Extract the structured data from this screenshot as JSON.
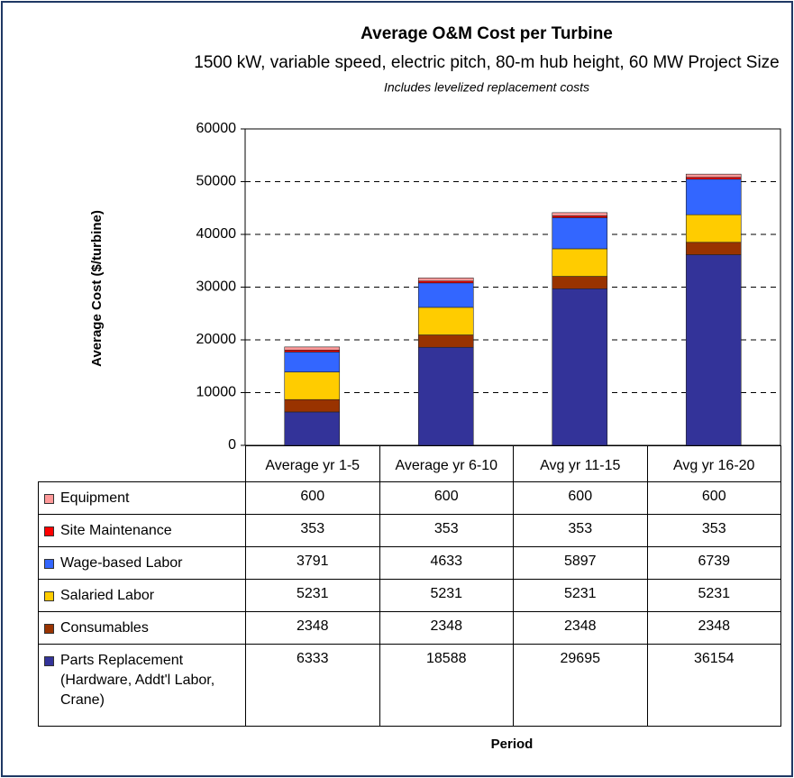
{
  "chart_data": {
    "type": "bar",
    "stacked": true,
    "title": "Average O&M Cost per Turbine",
    "subtitle": "1500 kW, variable speed, electric pitch, 80-m hub height, 60 MW Project Size",
    "note": "Includes levelized replacement costs",
    "y_label": "Average Cost ($/turbine)",
    "x_label": "Period",
    "categories": [
      "Average yr 1-5",
      "Average yr 6-10",
      "Avg yr 11-15",
      "Avg yr 16-20"
    ],
    "series": [
      {
        "name": "Parts Replacement (Hardware, Addt'l Labor, Crane)",
        "color": "#333399",
        "values": [
          6333,
          18588,
          29695,
          36154
        ]
      },
      {
        "name": "Consumables",
        "color": "#993300",
        "values": [
          2348,
          2348,
          2348,
          2348
        ]
      },
      {
        "name": "Salaried Labor",
        "color": "#ffcc00",
        "values": [
          5231,
          5231,
          5231,
          5231
        ]
      },
      {
        "name": "Wage-based Labor",
        "color": "#3366ff",
        "values": [
          3791,
          4633,
          5897,
          6739
        ]
      },
      {
        "name": "Site Maintenance",
        "color": "#ff0000",
        "values": [
          353,
          353,
          353,
          353
        ]
      },
      {
        "name": "Equipment",
        "color": "#ff9999",
        "values": [
          600,
          600,
          600,
          600
        ]
      }
    ],
    "ylim": [
      0,
      60000
    ],
    "yticks": [
      0,
      10000,
      20000,
      30000,
      40000,
      50000,
      60000
    ],
    "grid": true
  }
}
